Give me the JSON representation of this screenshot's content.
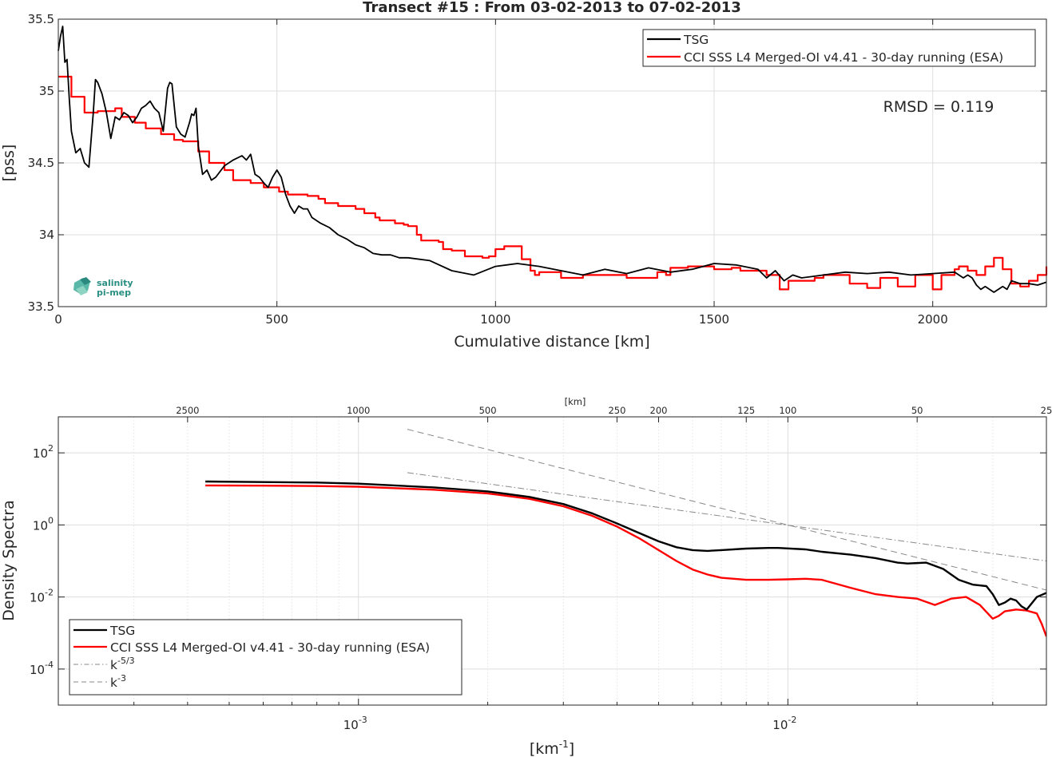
{
  "chart_data": [
    {
      "type": "line",
      "title": "Transect #15 : From 03-02-2013 to 07-02-2013",
      "xlabel": "Cumulative distance [km]",
      "ylabel": "[pss]",
      "xlim": [
        0,
        2260
      ],
      "ylim": [
        33.5,
        35.5
      ],
      "xticks": [
        0,
        500,
        1000,
        1500,
        2000
      ],
      "yticks": [
        33.5,
        34,
        34.5,
        35,
        35.5
      ],
      "xtick_labels": [
        "0",
        "500",
        "1000",
        "1500",
        "2000"
      ],
      "ytick_labels": [
        "33.5",
        "34",
        "34.5",
        "35",
        "35.5"
      ],
      "grid": true,
      "legend_position": "top-right",
      "annotation": "RMSD = 0.119",
      "logo_text": [
        "salinity",
        "pi-mep"
      ],
      "series": [
        {
          "name": "TSG",
          "color": "#000000",
          "x": [
            0,
            5,
            10,
            15,
            20,
            25,
            30,
            40,
            50,
            60,
            70,
            80,
            85,
            90,
            100,
            110,
            120,
            130,
            140,
            150,
            160,
            170,
            180,
            190,
            200,
            210,
            220,
            230,
            240,
            250,
            255,
            260,
            270,
            280,
            290,
            300,
            305,
            310,
            315,
            320,
            330,
            340,
            350,
            360,
            380,
            400,
            420,
            430,
            440,
            450,
            460,
            470,
            480,
            490,
            500,
            510,
            520,
            530,
            540,
            550,
            560,
            570,
            580,
            600,
            620,
            640,
            660,
            680,
            700,
            720,
            740,
            760,
            780,
            800,
            850,
            900,
            950,
            1000,
            1050,
            1100,
            1150,
            1200,
            1250,
            1300,
            1350,
            1400,
            1450,
            1500,
            1550,
            1600,
            1620,
            1640,
            1660,
            1680,
            1700,
            1750,
            1800,
            1850,
            1900,
            1950,
            2000,
            2050,
            2060,
            2070,
            2080,
            2090,
            2100,
            2110,
            2120,
            2130,
            2140,
            2150,
            2160,
            2170,
            2180,
            2200,
            2220,
            2240,
            2260
          ],
          "y": [
            35.28,
            35.38,
            35.45,
            35.2,
            35.22,
            34.95,
            34.72,
            34.57,
            34.6,
            34.5,
            34.47,
            34.85,
            35.08,
            35.06,
            34.98,
            34.85,
            34.67,
            34.82,
            34.8,
            34.85,
            34.83,
            34.78,
            34.82,
            34.88,
            34.9,
            34.93,
            34.88,
            34.85,
            34.72,
            35.02,
            35.06,
            35.05,
            34.75,
            34.7,
            34.68,
            34.78,
            34.84,
            34.83,
            34.88,
            34.62,
            34.42,
            34.45,
            34.38,
            34.4,
            34.48,
            34.52,
            34.55,
            34.52,
            34.56,
            34.42,
            34.4,
            34.36,
            34.33,
            34.4,
            34.45,
            34.4,
            34.28,
            34.2,
            34.15,
            34.2,
            34.18,
            34.18,
            34.12,
            34.08,
            34.05,
            34.0,
            33.97,
            33.93,
            33.91,
            33.87,
            33.86,
            33.86,
            33.84,
            33.84,
            33.82,
            33.75,
            33.72,
            33.78,
            33.8,
            33.78,
            33.75,
            33.72,
            33.76,
            33.73,
            33.77,
            33.74,
            33.76,
            33.8,
            33.79,
            33.76,
            33.7,
            33.75,
            33.68,
            33.72,
            33.7,
            33.72,
            33.74,
            33.73,
            33.74,
            33.72,
            33.73,
            33.74,
            33.72,
            33.7,
            33.72,
            33.7,
            33.65,
            33.62,
            33.64,
            33.62,
            33.6,
            33.62,
            33.64,
            33.62,
            33.68,
            33.66,
            33.66,
            33.65,
            33.67
          ]
        },
        {
          "name": "CCI SSS L4 Merged-OI v4.41 - 30-day running (ESA)",
          "color": "#ff0000",
          "step": true,
          "x": [
            0,
            30,
            60,
            90,
            130,
            145,
            175,
            200,
            235,
            265,
            285,
            320,
            345,
            380,
            400,
            440,
            470,
            505,
            525,
            570,
            595,
            610,
            640,
            680,
            700,
            725,
            735,
            770,
            790,
            800,
            820,
            830,
            870,
            880,
            900,
            930,
            970,
            985,
            1000,
            1020,
            1060,
            1080,
            1090,
            1100,
            1150,
            1160,
            1200,
            1250,
            1300,
            1370,
            1390,
            1400,
            1440,
            1500,
            1540,
            1560,
            1620,
            1650,
            1670,
            1700,
            1730,
            1750,
            1810,
            1850,
            1880,
            1920,
            1960,
            2000,
            2020,
            2050,
            2060,
            2080,
            2100,
            2120,
            2140,
            2160,
            2180,
            2200,
            2220,
            2240,
            2260
          ],
          "y": [
            35.1,
            34.96,
            34.85,
            34.86,
            34.88,
            34.82,
            34.78,
            34.74,
            34.7,
            34.66,
            34.65,
            34.58,
            34.5,
            34.45,
            34.38,
            34.36,
            34.33,
            34.3,
            34.28,
            34.27,
            34.25,
            34.22,
            34.2,
            34.18,
            34.15,
            34.12,
            34.1,
            34.08,
            34.07,
            34.06,
            34.0,
            33.96,
            33.95,
            33.9,
            33.89,
            33.85,
            33.84,
            33.85,
            33.9,
            33.92,
            33.83,
            33.75,
            33.72,
            33.74,
            33.7,
            33.7,
            33.72,
            33.72,
            33.7,
            33.74,
            33.72,
            33.77,
            33.78,
            33.76,
            33.77,
            33.75,
            33.72,
            33.62,
            33.68,
            33.68,
            33.7,
            33.72,
            33.66,
            33.63,
            33.7,
            33.64,
            33.72,
            33.62,
            33.72,
            33.76,
            33.78,
            33.75,
            33.72,
            33.78,
            33.84,
            33.76,
            33.66,
            33.64,
            33.68,
            33.72,
            33.78
          ]
        }
      ]
    },
    {
      "type": "line",
      "xscale": "log",
      "yscale": "log",
      "xlabel": "[km",
      "xlabel_sup": "-1",
      "xlabel_close": "]",
      "ylabel": "Density Spectra",
      "top_axis_label": "[km]",
      "xlim": [
        0.0002,
        0.04
      ],
      "ylim": [
        1e-05,
        1000
      ],
      "xtick_labels": [
        {
          "base": "10",
          "exp": "-3",
          "value": 0.001
        },
        {
          "base": "10",
          "exp": "-2",
          "value": 0.01
        }
      ],
      "ytick_labels": [
        {
          "base": "10",
          "exp": "2",
          "value": 100
        },
        {
          "base": "10",
          "exp": "0",
          "value": 1
        },
        {
          "base": "10",
          "exp": "-2",
          "value": 0.01
        },
        {
          "base": "10",
          "exp": "-4",
          "value": 0.0001
        }
      ],
      "top_ticks": [
        {
          "label": "2500",
          "km": 2500
        },
        {
          "label": "1000",
          "km": 1000
        },
        {
          "label": "500",
          "km": 500
        },
        {
          "label": "250",
          "km": 250
        },
        {
          "label": "200",
          "km": 200
        },
        {
          "label": "125",
          "km": 125
        },
        {
          "label": "100",
          "km": 100
        },
        {
          "label": "50",
          "km": 50
        },
        {
          "label": "25",
          "km": 25
        }
      ],
      "grid": true,
      "legend_position": "bottom-left",
      "series": [
        {
          "name": "TSG",
          "color": "#000000",
          "x": [
            0.00044,
            0.0006,
            0.0008,
            0.001,
            0.0015,
            0.002,
            0.0025,
            0.003,
            0.0035,
            0.004,
            0.0045,
            0.005,
            0.0055,
            0.006,
            0.0065,
            0.007,
            0.008,
            0.009,
            0.0095,
            0.011,
            0.012,
            0.014,
            0.016,
            0.018,
            0.019,
            0.021,
            0.023,
            0.025,
            0.027,
            0.029,
            0.03,
            0.031,
            0.032,
            0.033,
            0.034,
            0.035,
            0.036,
            0.038,
            0.04
          ],
          "y": [
            16,
            15.5,
            15,
            14,
            11,
            8.5,
            6,
            3.8,
            2.1,
            1.1,
            0.6,
            0.35,
            0.24,
            0.2,
            0.19,
            0.2,
            0.22,
            0.23,
            0.23,
            0.21,
            0.18,
            0.15,
            0.12,
            0.09,
            0.085,
            0.09,
            0.06,
            0.03,
            0.022,
            0.02,
            0.012,
            0.006,
            0.007,
            0.009,
            0.008,
            0.0055,
            0.0045,
            0.01,
            0.013
          ]
        },
        {
          "name": "CCI SSS L4 Merged-OI v4.41 - 30-day running (ESA)",
          "color": "#ff0000",
          "x": [
            0.00044,
            0.0006,
            0.0008,
            0.001,
            0.0015,
            0.002,
            0.0025,
            0.003,
            0.0035,
            0.004,
            0.0045,
            0.005,
            0.0055,
            0.006,
            0.0065,
            0.007,
            0.008,
            0.009,
            0.01,
            0.011,
            0.012,
            0.014,
            0.016,
            0.018,
            0.02,
            0.022,
            0.024,
            0.026,
            0.028,
            0.03,
            0.031,
            0.032,
            0.034,
            0.036,
            0.038,
            0.039,
            0.04
          ],
          "y": [
            12.5,
            12.3,
            12,
            11.5,
            9.5,
            7.5,
            5.3,
            3.3,
            1.8,
            0.9,
            0.43,
            0.2,
            0.1,
            0.058,
            0.042,
            0.034,
            0.03,
            0.03,
            0.031,
            0.032,
            0.03,
            0.018,
            0.012,
            0.01,
            0.009,
            0.006,
            0.009,
            0.01,
            0.006,
            0.0025,
            0.003,
            0.004,
            0.0045,
            0.0042,
            0.0035,
            0.0018,
            0.0008
          ]
        },
        {
          "name": "k-5/3",
          "label_base": "k",
          "label_exp": "-5/3",
          "color": "#888888",
          "dash": "dashdot",
          "x": [
            0.0013,
            0.04
          ],
          "y": [
            28.3,
            0.1
          ]
        },
        {
          "name": "k-3",
          "label_base": "k",
          "label_exp": "-3",
          "color": "#888888",
          "dash": "dash",
          "x": [
            0.0013,
            0.04
          ],
          "y": [
            450,
            0.0155
          ]
        }
      ]
    }
  ]
}
